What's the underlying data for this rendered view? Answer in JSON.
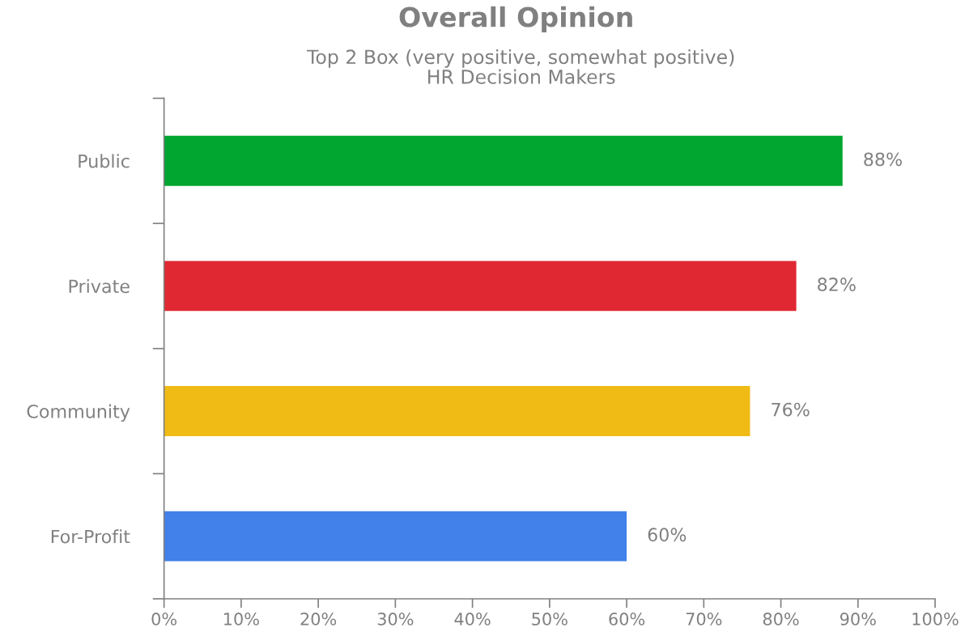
{
  "chart_data": {
    "type": "bar",
    "orientation": "horizontal",
    "title": "Overall Opinion",
    "subtitle": "Top 2 Box (very positive, somewhat positive)\nHR Decision Makers",
    "categories": [
      "Public",
      "Private",
      "Community",
      "For-Profit"
    ],
    "values": [
      88,
      82,
      76,
      60
    ],
    "colors": [
      "#00a62f",
      "#e02832",
      "#f0bb15",
      "#4280ea"
    ],
    "value_labels": [
      "88%",
      "82%",
      "76%",
      "60%"
    ],
    "xlim": [
      0,
      100
    ],
    "xticks": [
      {
        "value": 0,
        "label": "0%"
      },
      {
        "value": 10,
        "label": "10%"
      },
      {
        "value": 20,
        "label": "20%"
      },
      {
        "value": 30,
        "label": "30%"
      },
      {
        "value": 40,
        "label": "40%"
      },
      {
        "value": 50,
        "label": "50%"
      },
      {
        "value": 60,
        "label": "60%"
      },
      {
        "value": 70,
        "label": "70%"
      },
      {
        "value": 80,
        "label": "80%"
      },
      {
        "value": 90,
        "label": "90%"
      },
      {
        "value": 100,
        "label": "100%"
      }
    ],
    "grid": false,
    "legend": false
  }
}
